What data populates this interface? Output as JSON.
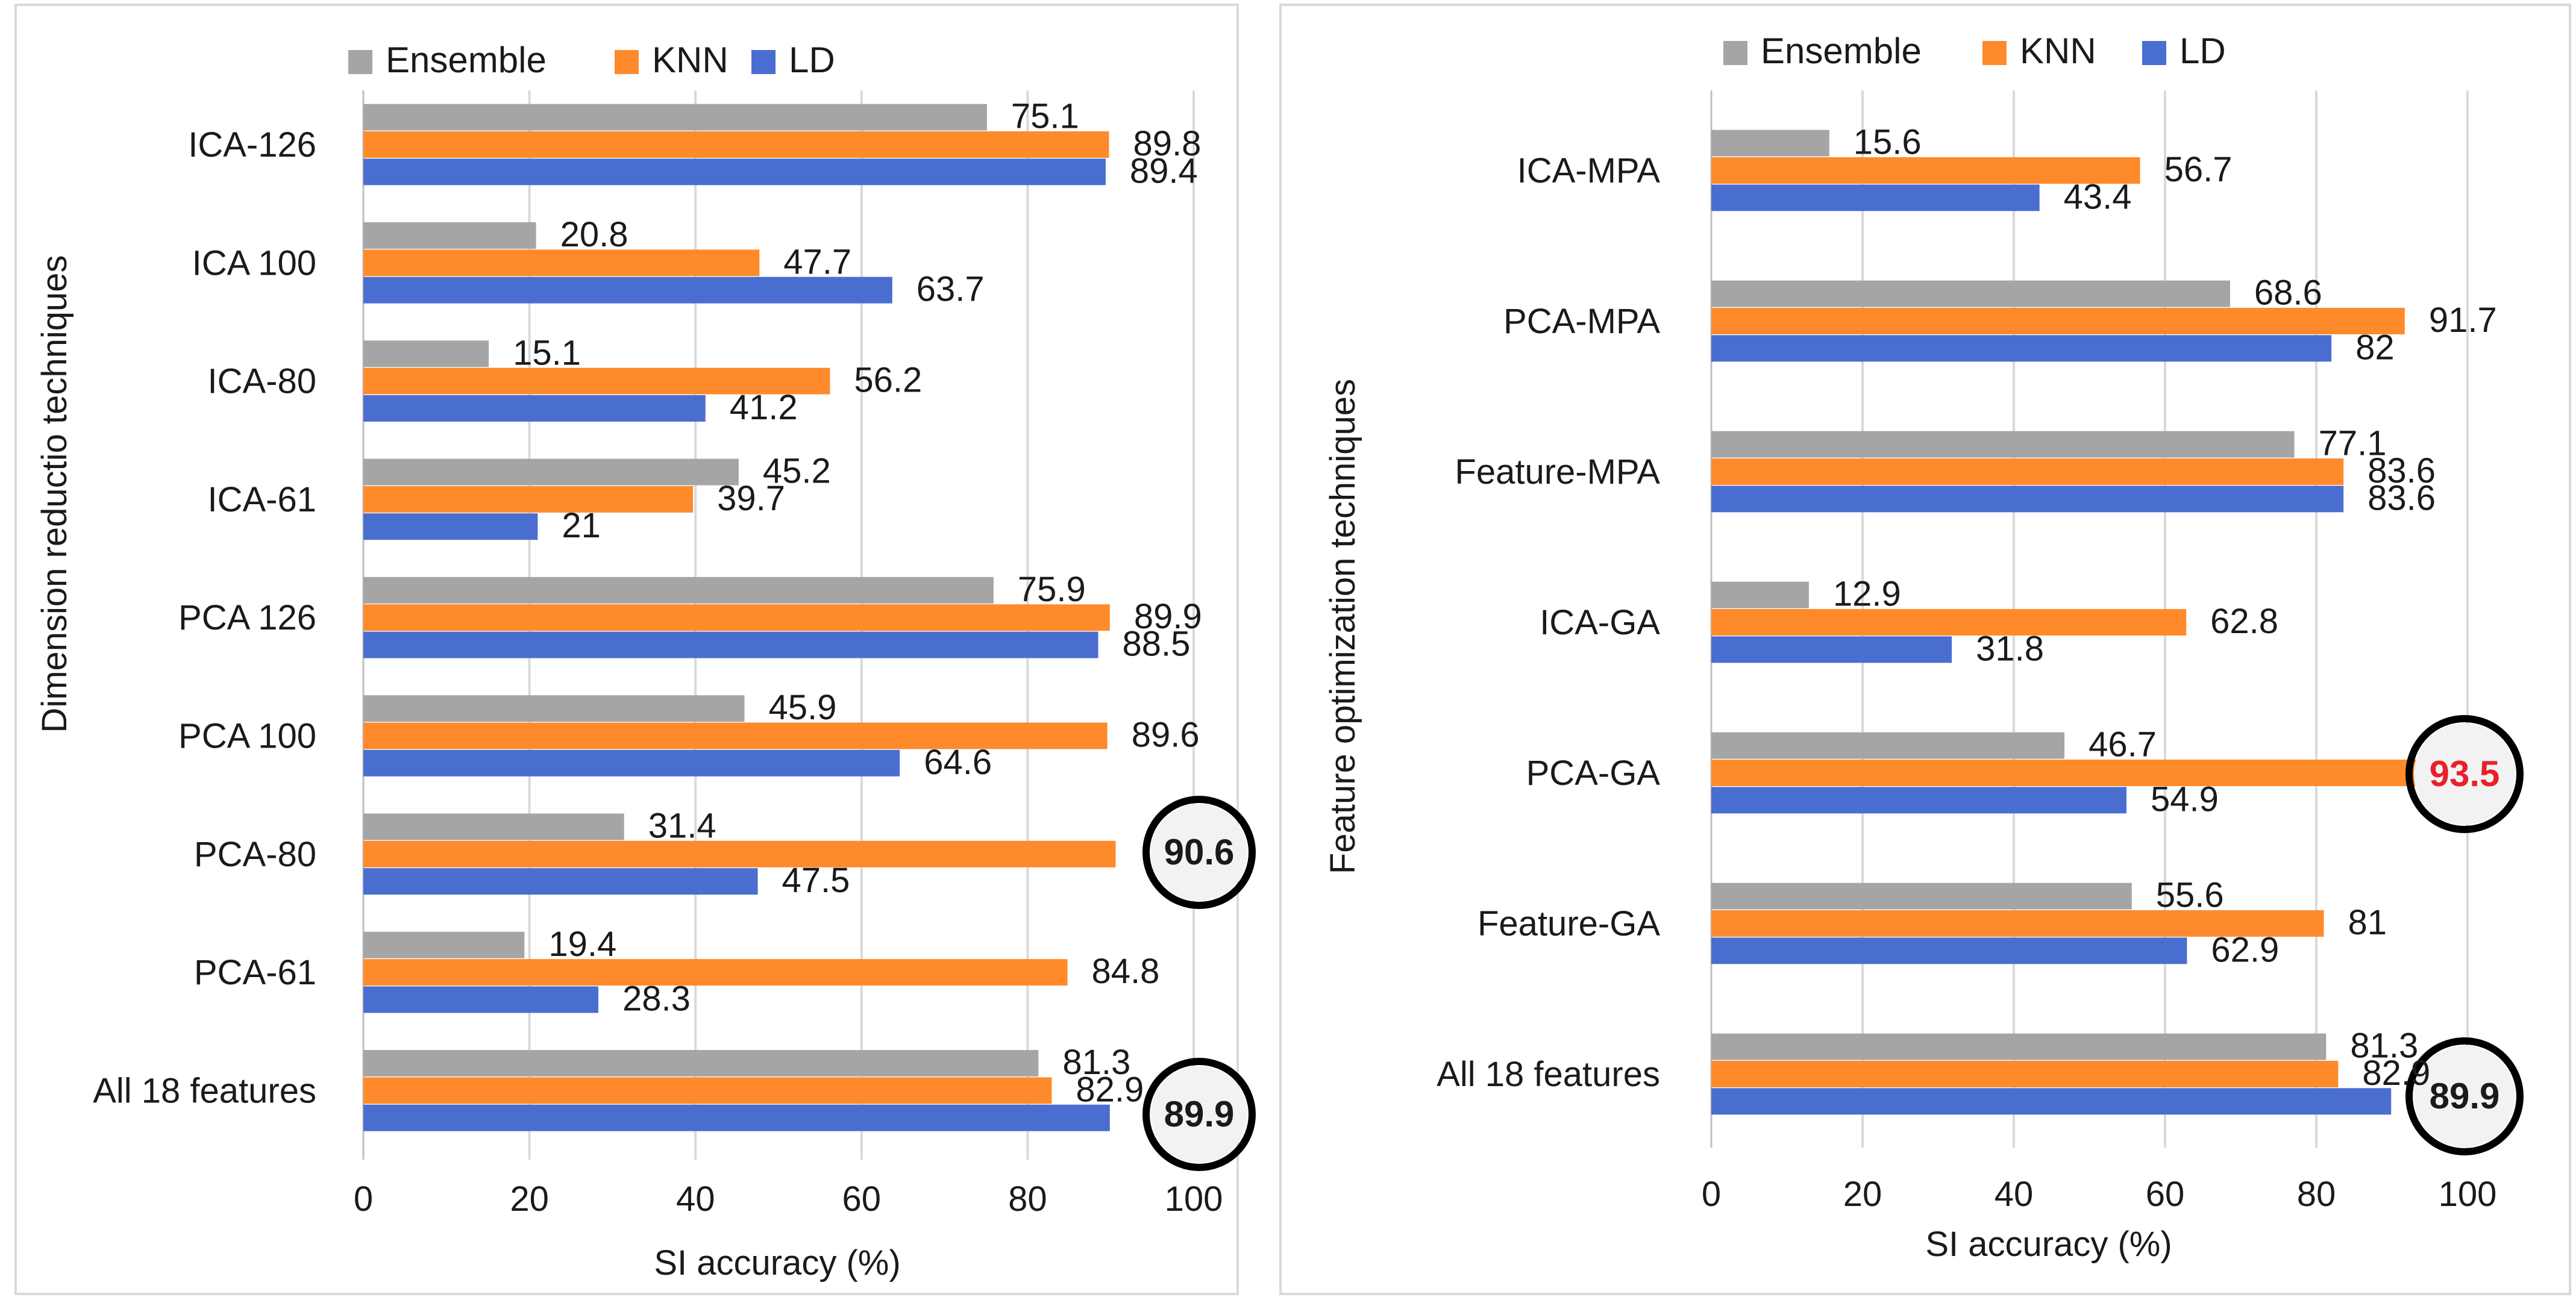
{
  "chart_data": [
    {
      "type": "bar",
      "orientation": "horizontal",
      "title": "",
      "xlabel": "SI accuracy (%)",
      "ylabel": "Dimension reductio techniques",
      "xlim": [
        0,
        100
      ],
      "xticks": [
        "0",
        "20",
        "40",
        "60",
        "80",
        "100"
      ],
      "grid": true,
      "legend_position": "top",
      "categories": [
        "ICA-126",
        "ICA 100",
        "ICA-80",
        "ICA-61",
        "PCA 126",
        "PCA 100",
        "PCA-80",
        "PCA-61",
        "All 18 features"
      ],
      "series": [
        {
          "name": "Ensemble",
          "color": "#a5a5a5",
          "values": [
            75.1,
            20.8,
            15.1,
            45.2,
            75.9,
            45.9,
            31.4,
            19.4,
            81.3
          ]
        },
        {
          "name": "KNN",
          "color": "#ff8a2b",
          "values": [
            89.8,
            47.7,
            56.2,
            39.7,
            89.9,
            89.6,
            90.6,
            84.8,
            82.9
          ]
        },
        {
          "name": "LD",
          "color": "#4a6ed0",
          "values": [
            89.4,
            63.7,
            41.2,
            21,
            88.5,
            64.6,
            47.5,
            28.3,
            89.9
          ]
        }
      ],
      "highlighted_values": [
        "90.6",
        "89.9"
      ]
    },
    {
      "type": "bar",
      "orientation": "horizontal",
      "title": "",
      "xlabel": "SI accuracy (%)",
      "ylabel": "Feature optimization techniques",
      "xlim": [
        0,
        100
      ],
      "xticks": [
        "0",
        "20",
        "40",
        "60",
        "80",
        "100"
      ],
      "grid": true,
      "legend_position": "top",
      "categories": [
        "ICA-MPA",
        "PCA-MPA",
        "Feature-MPA",
        "ICA-GA",
        "PCA-GA",
        "Feature-GA",
        "All 18 features"
      ],
      "series": [
        {
          "name": "Ensemble",
          "color": "#a5a5a5",
          "values": [
            15.6,
            68.6,
            77.1,
            12.9,
            46.7,
            55.6,
            81.3
          ]
        },
        {
          "name": "KNN",
          "color": "#ff8a2b",
          "values": [
            56.7,
            91.7,
            83.6,
            62.8,
            93.5,
            81,
            82.9
          ]
        },
        {
          "name": "LD",
          "color": "#4a6ed0",
          "values": [
            43.4,
            82,
            83.6,
            31.8,
            54.9,
            62.9,
            89.9
          ]
        }
      ],
      "highlighted_values": [
        "93.5",
        "89.9"
      ]
    }
  ]
}
